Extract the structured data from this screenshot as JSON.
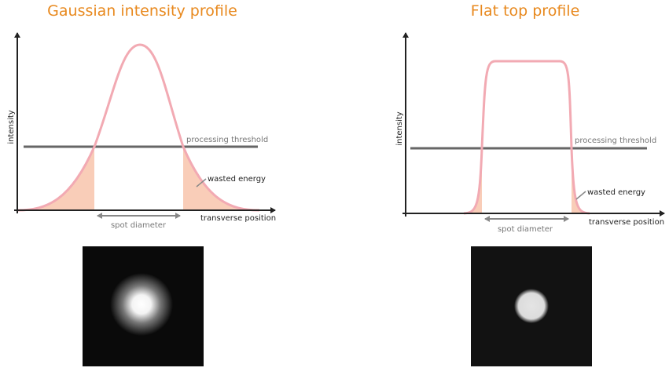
{
  "panels": [
    {
      "title": "Gaussian intensity profile",
      "y_axis_label": "intensity",
      "x_axis_label": "transverse position",
      "threshold_label": "processing threshold",
      "waste_label": "wasted energy",
      "width_label": "spot diameter"
    },
    {
      "title": "Flat top profile",
      "y_axis_label": "intensity",
      "x_axis_label": "transverse position",
      "threshold_label": "processing threshold",
      "waste_label": "wasted energy",
      "width_label": "spot diameter"
    }
  ]
}
